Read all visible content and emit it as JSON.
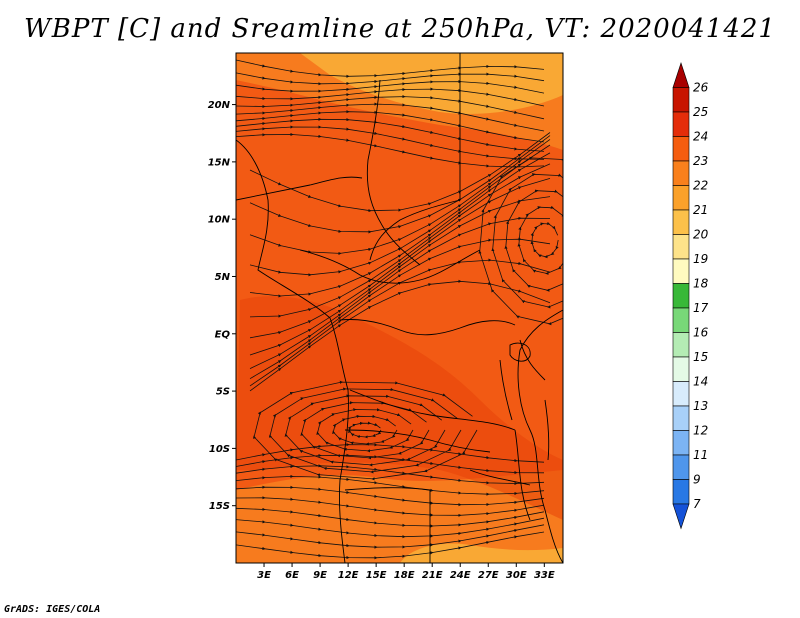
{
  "title": "WBPT [C] and Sreamline at 250hPa, VT: 2020041421",
  "footer": "GrADS: IGES/COLA",
  "map": {
    "lon_range": [
      0,
      35
    ],
    "lat_range": [
      -20,
      24.5
    ],
    "lat_labels": [
      {
        "text": "20N",
        "value": 20
      },
      {
        "text": "15N",
        "value": 15
      },
      {
        "text": "10N",
        "value": 10
      },
      {
        "text": "5N",
        "value": 5
      },
      {
        "text": "EQ",
        "value": 0
      },
      {
        "text": "5S",
        "value": -5
      },
      {
        "text": "10S",
        "value": -10
      },
      {
        "text": "15S",
        "value": -15
      }
    ],
    "lon_labels": [
      {
        "text": "3E",
        "value": 3
      },
      {
        "text": "6E",
        "value": 6
      },
      {
        "text": "9E",
        "value": 9
      },
      {
        "text": "12E",
        "value": 12
      },
      {
        "text": "15E",
        "value": 15
      },
      {
        "text": "18E",
        "value": 18
      },
      {
        "text": "21E",
        "value": 21
      },
      {
        "text": "24E",
        "value": 24
      },
      {
        "text": "27E",
        "value": 27
      },
      {
        "text": "30E",
        "value": 30
      },
      {
        "text": "33E",
        "value": 33
      }
    ],
    "field_colors": {
      "deep": "#e8440a",
      "main": "#f25a14",
      "warm": "#f77b1e",
      "light": "#f9a834"
    }
  },
  "colorbar": {
    "labels": [
      "26",
      "25",
      "24",
      "23",
      "22",
      "21",
      "20",
      "19",
      "18",
      "17",
      "16",
      "15",
      "14",
      "13",
      "12",
      "11",
      "9",
      "7"
    ],
    "colors": [
      "#a80000",
      "#c81400",
      "#e42d0a",
      "#f55d0f",
      "#f9801c",
      "#fba12a",
      "#fcc14a",
      "#fde38a",
      "#fffbc0",
      "#38b838",
      "#78d878",
      "#b4ecb4",
      "#e4fae6",
      "#d8ecfc",
      "#a8d0f8",
      "#7cb4f4",
      "#4f96ec",
      "#2878e4",
      "#1452d8"
    ]
  }
}
